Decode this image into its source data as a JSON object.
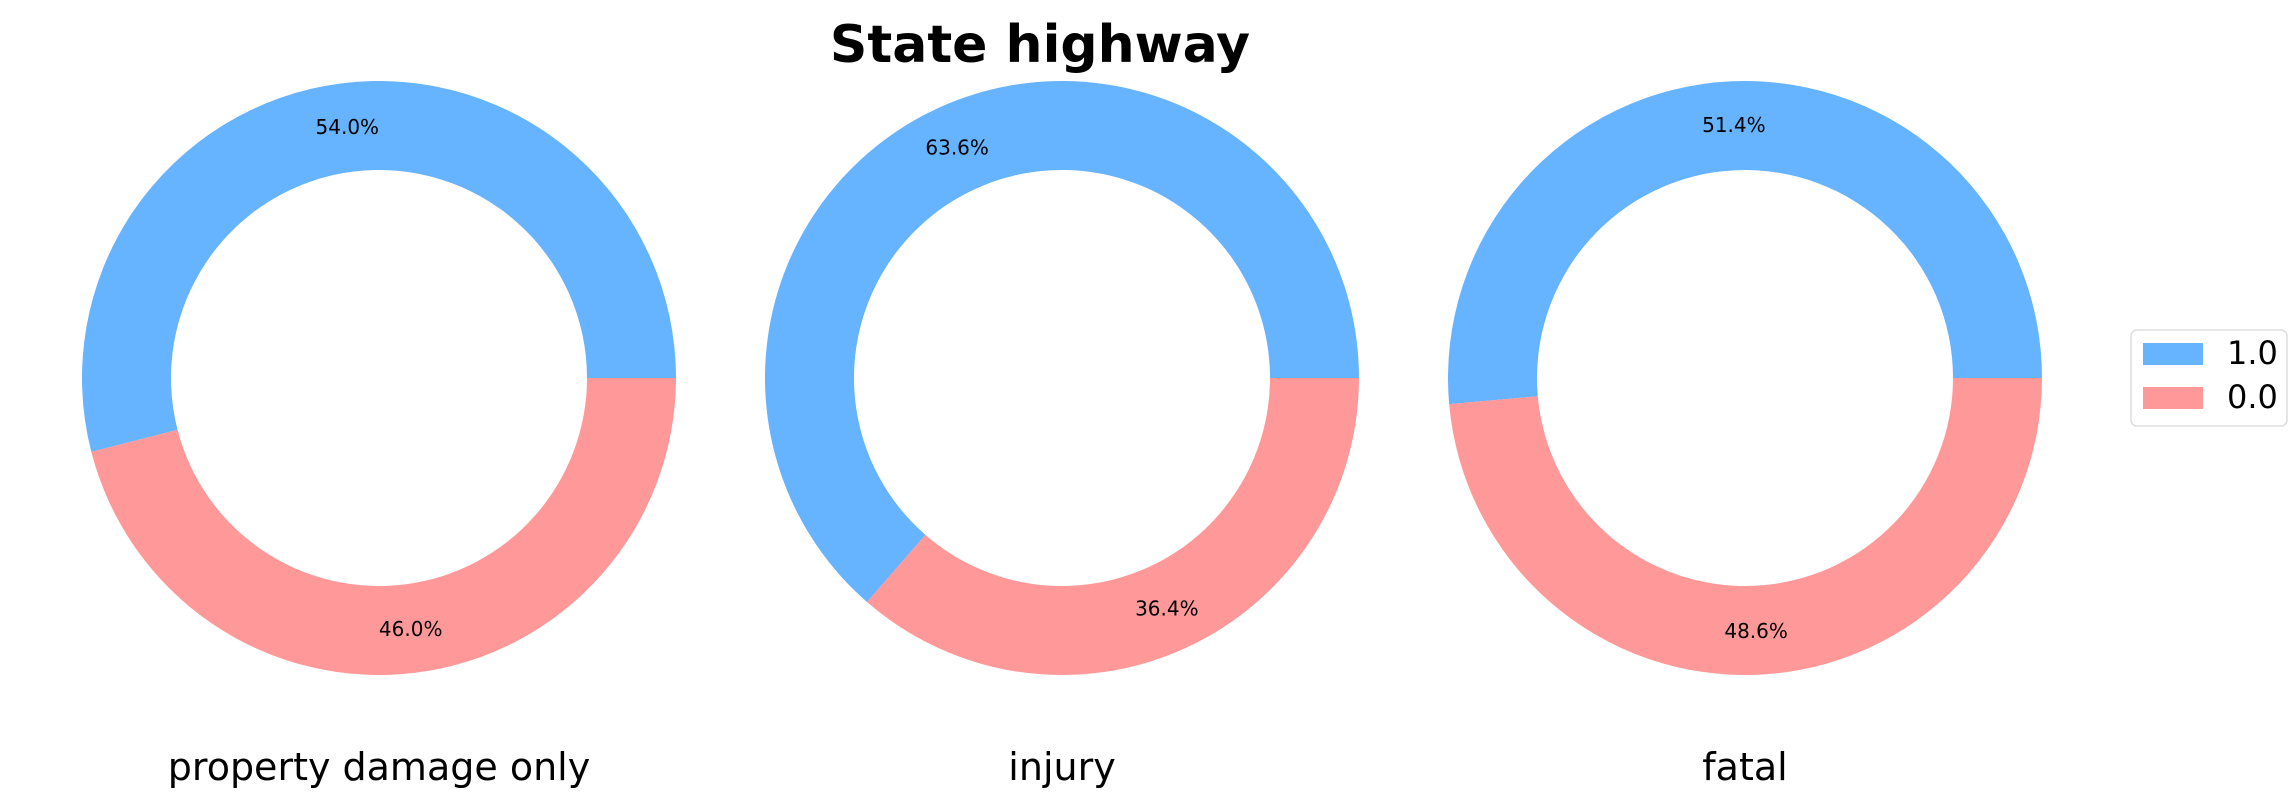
{
  "chart_data": {
    "type": "pie",
    "style": "donut",
    "title": "State highway",
    "legend": {
      "placement": "right",
      "entries": [
        {
          "label": "1.0",
          "color": "#66b3ff"
        },
        {
          "label": "0.0",
          "color": "#ff9999"
        }
      ]
    },
    "charts": [
      {
        "subtitle": "property damage only",
        "slices": [
          {
            "label": "1.0",
            "value": 54.0,
            "pct_label": "54.0%",
            "color": "#66b3ff"
          },
          {
            "label": "0.0",
            "value": 46.0,
            "pct_label": "46.0%",
            "color": "#ff9999"
          }
        ]
      },
      {
        "subtitle": "injury",
        "slices": [
          {
            "label": "1.0",
            "value": 63.6,
            "pct_label": "63.6%",
            "color": "#66b3ff"
          },
          {
            "label": "0.0",
            "value": 36.4,
            "pct_label": "36.4%",
            "color": "#ff9999"
          }
        ]
      },
      {
        "subtitle": "fatal",
        "slices": [
          {
            "label": "1.0",
            "value": 51.4,
            "pct_label": "51.4%",
            "color": "#66b3ff"
          },
          {
            "label": "0.0",
            "value": 48.6,
            "pct_label": "48.6%",
            "color": "#ff9999"
          }
        ]
      }
    ]
  }
}
